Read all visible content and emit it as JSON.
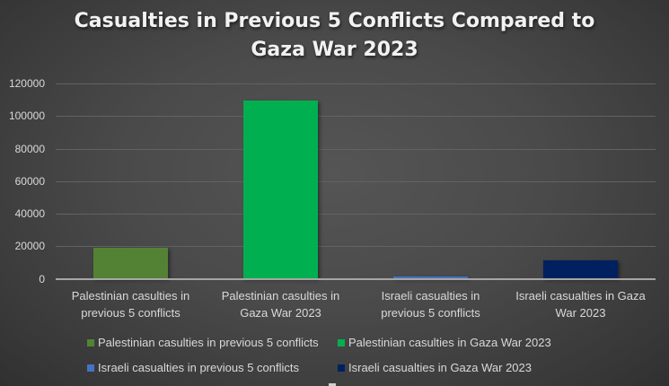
{
  "chart_data": {
    "type": "bar",
    "title": "Casualties in Previous 5 Conflicts Compared to Gaza War 2023",
    "title_lines": [
      "Casualties in Previous 5 Conflicts Compared to",
      "Gaza War 2023"
    ],
    "xlabel": "",
    "ylabel": "",
    "ylim": [
      0,
      120000
    ],
    "yticks": [
      "0",
      "20000",
      "40000",
      "60000",
      "80000",
      "100000",
      "120000"
    ],
    "grid": true,
    "legend_position": "bottom",
    "categories": [
      "Palestinian casulties in previous 5 conflicts",
      "Palestinian casulties in Gaza War 2023",
      "Israeli casualties in previous 5 conflicts",
      "Israeli casualties in Gaza War 2023"
    ],
    "category_label_lines": [
      [
        "Palestinian casulties in",
        "previous 5 conflicts"
      ],
      [
        "Palestinian casulties in",
        "Gaza War 2023"
      ],
      [
        "Israeli casualties in",
        "previous 5 conflicts"
      ],
      [
        "Israeli casualties in Gaza",
        "War 2023"
      ]
    ],
    "series": [
      {
        "name": "Palestinian casulties in previous 5 conflicts",
        "color": "#548235",
        "values": [
          18700,
          null,
          null,
          null
        ]
      },
      {
        "name": "Palestinian casulties in Gaza War 2023",
        "color": "#00b050",
        "values": [
          null,
          109700,
          null,
          null
        ]
      },
      {
        "name": "Israeli casualties in previous 5 conflicts",
        "color": "#4472c4",
        "values": [
          null,
          null,
          1000,
          null
        ]
      },
      {
        "name": "Israeli casualties in Gaza War 2023",
        "color": "#002060",
        "values": [
          null,
          null,
          null,
          11100
        ]
      }
    ],
    "values": [
      18700,
      109700,
      1000,
      11100
    ]
  }
}
